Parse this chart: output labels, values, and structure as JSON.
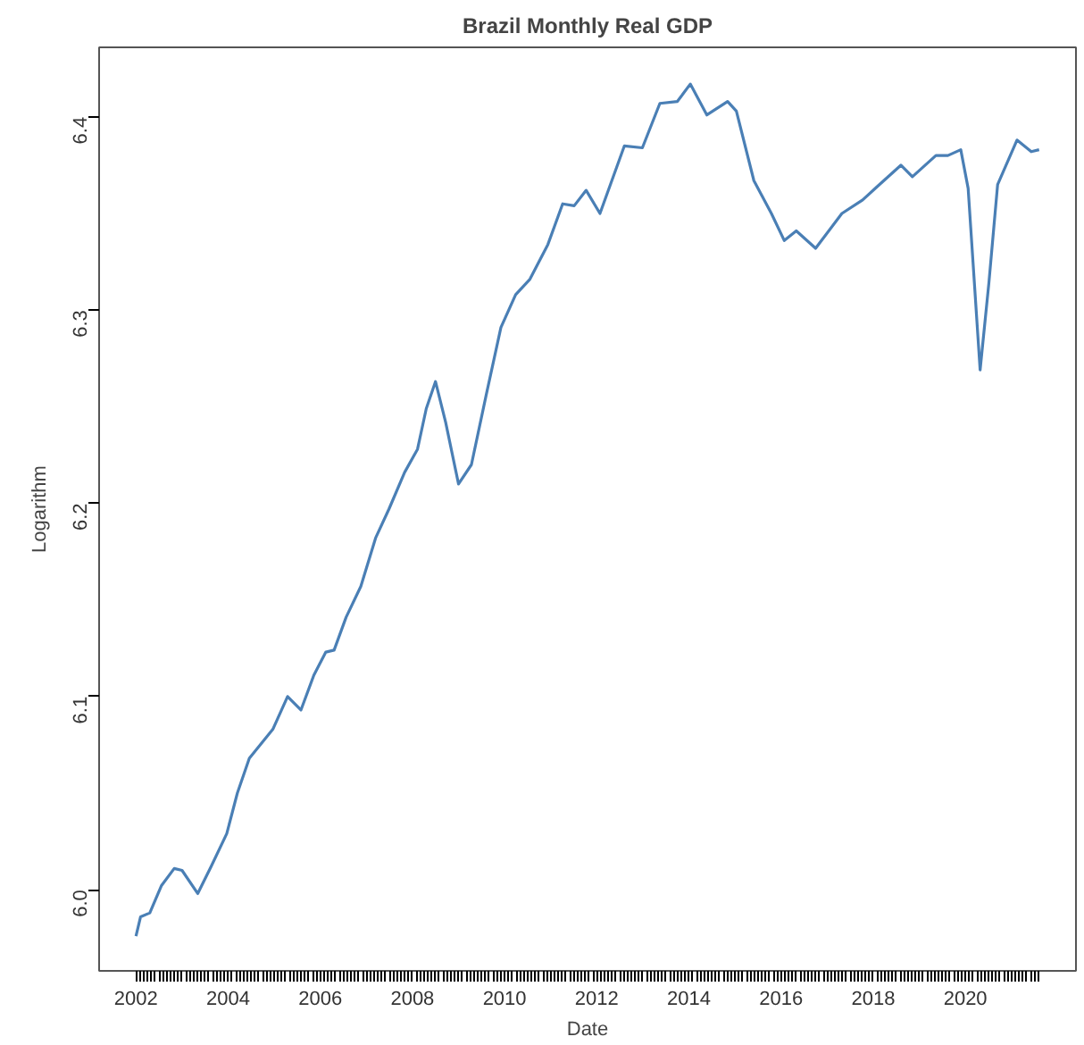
{
  "chart_data": {
    "type": "line",
    "title": "Brazil Monthly Real GDP",
    "xlabel": "Date",
    "ylabel": "Logarithm",
    "x": [
      2002.0,
      2002.1,
      2002.3,
      2002.55,
      2002.83,
      2003.0,
      2003.34,
      2003.63,
      2003.97,
      2004.2,
      2004.46,
      2004.97,
      2005.29,
      2005.58,
      2005.86,
      2006.12,
      2006.3,
      2006.56,
      2006.88,
      2007.2,
      2007.49,
      2007.83,
      2008.11,
      2008.3,
      2008.5,
      2008.72,
      2009.0,
      2009.28,
      2009.6,
      2009.92,
      2010.24,
      2010.55,
      2010.94,
      2011.26,
      2011.51,
      2011.77,
      2012.07,
      2012.6,
      2012.99,
      2013.37,
      2013.75,
      2014.03,
      2014.39,
      2014.84,
      2015.03,
      2015.41,
      2015.79,
      2016.07,
      2016.33,
      2016.75,
      2017.32,
      2017.77,
      2018.09,
      2018.6,
      2018.85,
      2019.36,
      2019.62,
      2019.9,
      2020.06,
      2020.32,
      2020.51,
      2020.7,
      2021.12,
      2021.43,
      2021.6
    ],
    "series": [
      {
        "color": "#4a7fb5",
        "values": [
          5.976,
          5.986,
          5.988,
          6.002,
          6.011,
          6.01,
          5.998,
          6.012,
          6.029,
          6.05,
          6.068,
          6.083,
          6.1,
          6.093,
          6.111,
          6.123,
          6.124,
          6.141,
          6.157,
          6.182,
          6.197,
          6.216,
          6.228,
          6.249,
          6.263,
          6.242,
          6.21,
          6.22,
          6.256,
          6.291,
          6.308,
          6.316,
          6.334,
          6.355,
          6.354,
          6.362,
          6.35,
          6.385,
          6.384,
          6.407,
          6.408,
          6.417,
          6.401,
          6.408,
          6.403,
          6.367,
          6.35,
          6.336,
          6.341,
          6.332,
          6.35,
          6.357,
          6.364,
          6.375,
          6.369,
          6.38,
          6.38,
          6.383,
          6.363,
          6.269,
          6.314,
          6.365,
          6.388,
          6.382,
          6.383
        ]
      }
    ],
    "xlim": [
      2001.2,
      2022.4
    ],
    "ylim": [
      5.958,
      6.436
    ],
    "yticks": [
      {
        "value": 6.0,
        "label": "6.0"
      },
      6.1,
      6.2,
      6.3,
      6.4
    ],
    "xticks": [
      2002,
      {
        "value": 2002.083,
        "label": null
      },
      {
        "value": 2002.167,
        "label": null
      },
      {
        "value": 2002.25,
        "label": null
      },
      {
        "value": 2002.333,
        "label": null
      },
      {
        "value": 2002.417,
        "label": null
      },
      {
        "value": 2002.5,
        "label": null
      },
      {
        "value": 2002.583,
        "label": null
      },
      {
        "value": 2002.667,
        "label": null
      },
      {
        "value": 2002.75,
        "label": null
      },
      {
        "value": 2002.833,
        "label": null
      },
      {
        "value": 2002.917,
        "label": null
      },
      {
        "value": 2003,
        "label": null
      },
      {
        "value": 2003.083,
        "label": null
      },
      {
        "value": 2003.167,
        "label": null
      },
      {
        "value": 2003.25,
        "label": null
      },
      {
        "value": 2003.333,
        "label": null
      },
      {
        "value": 2003.417,
        "label": null
      },
      {
        "value": 2003.5,
        "label": null
      },
      {
        "value": 2003.583,
        "label": null
      },
      {
        "value": 2003.667,
        "label": null
      },
      {
        "value": 2003.75,
        "label": null
      },
      {
        "value": 2003.833,
        "label": null
      },
      {
        "value": 2003.917,
        "label": null
      },
      2004,
      {
        "value": 2004.083,
        "label": null
      },
      {
        "value": 2004.167,
        "label": null
      },
      {
        "value": 2004.25,
        "label": null
      },
      {
        "value": 2004.333,
        "label": null
      },
      {
        "value": 2004.417,
        "label": null
      },
      {
        "value": 2004.5,
        "label": null
      },
      {
        "value": 2004.583,
        "label": null
      },
      {
        "value": 2004.667,
        "label": null
      },
      {
        "value": 2004.75,
        "label": null
      },
      {
        "value": 2004.833,
        "label": null
      },
      {
        "value": 2004.917,
        "label": null
      },
      {
        "value": 2005,
        "label": null
      },
      {
        "value": 2005.083,
        "label": null
      },
      {
        "value": 2005.167,
        "label": null
      },
      {
        "value": 2005.25,
        "label": null
      },
      {
        "value": 2005.333,
        "label": null
      },
      {
        "value": 2005.417,
        "label": null
      },
      {
        "value": 2005.5,
        "label": null
      },
      {
        "value": 2005.583,
        "label": null
      },
      {
        "value": 2005.667,
        "label": null
      },
      {
        "value": 2005.75,
        "label": null
      },
      {
        "value": 2005.833,
        "label": null
      },
      {
        "value": 2005.917,
        "label": null
      },
      2006,
      {
        "value": 2006.083,
        "label": null
      },
      {
        "value": 2006.167,
        "label": null
      },
      {
        "value": 2006.25,
        "label": null
      },
      {
        "value": 2006.333,
        "label": null
      },
      {
        "value": 2006.417,
        "label": null
      },
      {
        "value": 2006.5,
        "label": null
      },
      {
        "value": 2006.583,
        "label": null
      },
      {
        "value": 2006.667,
        "label": null
      },
      {
        "value": 2006.75,
        "label": null
      },
      {
        "value": 2006.833,
        "label": null
      },
      {
        "value": 2006.917,
        "label": null
      },
      {
        "value": 2007,
        "label": null
      },
      {
        "value": 2007.083,
        "label": null
      },
      {
        "value": 2007.167,
        "label": null
      },
      {
        "value": 2007.25,
        "label": null
      },
      {
        "value": 2007.333,
        "label": null
      },
      {
        "value": 2007.417,
        "label": null
      },
      {
        "value": 2007.5,
        "label": null
      },
      {
        "value": 2007.583,
        "label": null
      },
      {
        "value": 2007.667,
        "label": null
      },
      {
        "value": 2007.75,
        "label": null
      },
      {
        "value": 2007.833,
        "label": null
      },
      {
        "value": 2007.917,
        "label": null
      },
      2008,
      {
        "value": 2008.083,
        "label": null
      },
      {
        "value": 2008.167,
        "label": null
      },
      {
        "value": 2008.25,
        "label": null
      },
      {
        "value": 2008.333,
        "label": null
      },
      {
        "value": 2008.417,
        "label": null
      },
      {
        "value": 2008.5,
        "label": null
      },
      {
        "value": 2008.583,
        "label": null
      },
      {
        "value": 2008.667,
        "label": null
      },
      {
        "value": 2008.75,
        "label": null
      },
      {
        "value": 2008.833,
        "label": null
      },
      {
        "value": 2008.917,
        "label": null
      },
      {
        "value": 2009,
        "label": null
      },
      {
        "value": 2009.083,
        "label": null
      },
      {
        "value": 2009.167,
        "label": null
      },
      {
        "value": 2009.25,
        "label": null
      },
      {
        "value": 2009.333,
        "label": null
      },
      {
        "value": 2009.417,
        "label": null
      },
      {
        "value": 2009.5,
        "label": null
      },
      {
        "value": 2009.583,
        "label": null
      },
      {
        "value": 2009.667,
        "label": null
      },
      {
        "value": 2009.75,
        "label": null
      },
      {
        "value": 2009.833,
        "label": null
      },
      {
        "value": 2009.917,
        "label": null
      },
      2010,
      {
        "value": 2010.083,
        "label": null
      },
      {
        "value": 2010.167,
        "label": null
      },
      {
        "value": 2010.25,
        "label": null
      },
      {
        "value": 2010.333,
        "label": null
      },
      {
        "value": 2010.417,
        "label": null
      },
      {
        "value": 2010.5,
        "label": null
      },
      {
        "value": 2010.583,
        "label": null
      },
      {
        "value": 2010.667,
        "label": null
      },
      {
        "value": 2010.75,
        "label": null
      },
      {
        "value": 2010.833,
        "label": null
      },
      {
        "value": 2010.917,
        "label": null
      },
      {
        "value": 2011,
        "label": null
      },
      {
        "value": 2011.083,
        "label": null
      },
      {
        "value": 2011.167,
        "label": null
      },
      {
        "value": 2011.25,
        "label": null
      },
      {
        "value": 2011.333,
        "label": null
      },
      {
        "value": 2011.417,
        "label": null
      },
      {
        "value": 2011.5,
        "label": null
      },
      {
        "value": 2011.583,
        "label": null
      },
      {
        "value": 2011.667,
        "label": null
      },
      {
        "value": 2011.75,
        "label": null
      },
      {
        "value": 2011.833,
        "label": null
      },
      {
        "value": 2011.917,
        "label": null
      },
      2012,
      {
        "value": 2012.083,
        "label": null
      },
      {
        "value": 2012.167,
        "label": null
      },
      {
        "value": 2012.25,
        "label": null
      },
      {
        "value": 2012.333,
        "label": null
      },
      {
        "value": 2012.417,
        "label": null
      },
      {
        "value": 2012.5,
        "label": null
      },
      {
        "value": 2012.583,
        "label": null
      },
      {
        "value": 2012.667,
        "label": null
      },
      {
        "value": 2012.75,
        "label": null
      },
      {
        "value": 2012.833,
        "label": null
      },
      {
        "value": 2012.917,
        "label": null
      },
      {
        "value": 2013,
        "label": null
      },
      {
        "value": 2013.083,
        "label": null
      },
      {
        "value": 2013.167,
        "label": null
      },
      {
        "value": 2013.25,
        "label": null
      },
      {
        "value": 2013.333,
        "label": null
      },
      {
        "value": 2013.417,
        "label": null
      },
      {
        "value": 2013.5,
        "label": null
      },
      {
        "value": 2013.583,
        "label": null
      },
      {
        "value": 2013.667,
        "label": null
      },
      {
        "value": 2013.75,
        "label": null
      },
      {
        "value": 2013.833,
        "label": null
      },
      {
        "value": 2013.917,
        "label": null
      },
      2014,
      {
        "value": 2014.083,
        "label": null
      },
      {
        "value": 2014.167,
        "label": null
      },
      {
        "value": 2014.25,
        "label": null
      },
      {
        "value": 2014.333,
        "label": null
      },
      {
        "value": 2014.417,
        "label": null
      },
      {
        "value": 2014.5,
        "label": null
      },
      {
        "value": 2014.583,
        "label": null
      },
      {
        "value": 2014.667,
        "label": null
      },
      {
        "value": 2014.75,
        "label": null
      },
      {
        "value": 2014.833,
        "label": null
      },
      {
        "value": 2014.917,
        "label": null
      },
      {
        "value": 2015,
        "label": null
      },
      {
        "value": 2015.083,
        "label": null
      },
      {
        "value": 2015.167,
        "label": null
      },
      {
        "value": 2015.25,
        "label": null
      },
      {
        "value": 2015.333,
        "label": null
      },
      {
        "value": 2015.417,
        "label": null
      },
      {
        "value": 2015.5,
        "label": null
      },
      {
        "value": 2015.583,
        "label": null
      },
      {
        "value": 2015.667,
        "label": null
      },
      {
        "value": 2015.75,
        "label": null
      },
      {
        "value": 2015.833,
        "label": null
      },
      {
        "value": 2015.917,
        "label": null
      },
      2016,
      {
        "value": 2016.083,
        "label": null
      },
      {
        "value": 2016.167,
        "label": null
      },
      {
        "value": 2016.25,
        "label": null
      },
      {
        "value": 2016.333,
        "label": null
      },
      {
        "value": 2016.417,
        "label": null
      },
      {
        "value": 2016.5,
        "label": null
      },
      {
        "value": 2016.583,
        "label": null
      },
      {
        "value": 2016.667,
        "label": null
      },
      {
        "value": 2016.75,
        "label": null
      },
      {
        "value": 2016.833,
        "label": null
      },
      {
        "value": 2016.917,
        "label": null
      },
      {
        "value": 2017,
        "label": null
      },
      {
        "value": 2017.083,
        "label": null
      },
      {
        "value": 2017.167,
        "label": null
      },
      {
        "value": 2017.25,
        "label": null
      },
      {
        "value": 2017.333,
        "label": null
      },
      {
        "value": 2017.417,
        "label": null
      },
      {
        "value": 2017.5,
        "label": null
      },
      {
        "value": 2017.583,
        "label": null
      },
      {
        "value": 2017.667,
        "label": null
      },
      {
        "value": 2017.75,
        "label": null
      },
      {
        "value": 2017.833,
        "label": null
      },
      {
        "value": 2017.917,
        "label": null
      },
      2018,
      {
        "value": 2018.083,
        "label": null
      },
      {
        "value": 2018.167,
        "label": null
      },
      {
        "value": 2018.25,
        "label": null
      },
      {
        "value": 2018.333,
        "label": null
      },
      {
        "value": 2018.417,
        "label": null
      },
      {
        "value": 2018.5,
        "label": null
      },
      {
        "value": 2018.583,
        "label": null
      },
      {
        "value": 2018.667,
        "label": null
      },
      {
        "value": 2018.75,
        "label": null
      },
      {
        "value": 2018.833,
        "label": null
      },
      {
        "value": 2018.917,
        "label": null
      },
      {
        "value": 2019,
        "label": null
      },
      {
        "value": 2019.083,
        "label": null
      },
      {
        "value": 2019.167,
        "label": null
      },
      {
        "value": 2019.25,
        "label": null
      },
      {
        "value": 2019.333,
        "label": null
      },
      {
        "value": 2019.417,
        "label": null
      },
      {
        "value": 2019.5,
        "label": null
      },
      {
        "value": 2019.583,
        "label": null
      },
      {
        "value": 2019.667,
        "label": null
      },
      {
        "value": 2019.75,
        "label": null
      },
      {
        "value": 2019.833,
        "label": null
      },
      {
        "value": 2019.917,
        "label": null
      },
      2020,
      {
        "value": 2020.083,
        "label": null
      },
      {
        "value": 2020.167,
        "label": null
      },
      {
        "value": 2020.25,
        "label": null
      },
      {
        "value": 2020.333,
        "label": null
      },
      {
        "value": 2020.417,
        "label": null
      },
      {
        "value": 2020.5,
        "label": null
      },
      {
        "value": 2020.583,
        "label": null
      },
      {
        "value": 2020.667,
        "label": null
      },
      {
        "value": 2020.75,
        "label": null
      },
      {
        "value": 2020.833,
        "label": null
      },
      {
        "value": 2020.917,
        "label": null
      },
      {
        "value": 2021,
        "label": null
      },
      {
        "value": 2021.083,
        "label": null
      },
      {
        "value": 2021.167,
        "label": null
      },
      {
        "value": 2021.25,
        "label": null
      },
      {
        "value": 2021.333,
        "label": null
      },
      {
        "value": 2021.417,
        "label": null
      },
      {
        "value": 2021.5,
        "label": null
      },
      {
        "value": 2021.583,
        "label": null
      }
    ],
    "grid": false
  }
}
